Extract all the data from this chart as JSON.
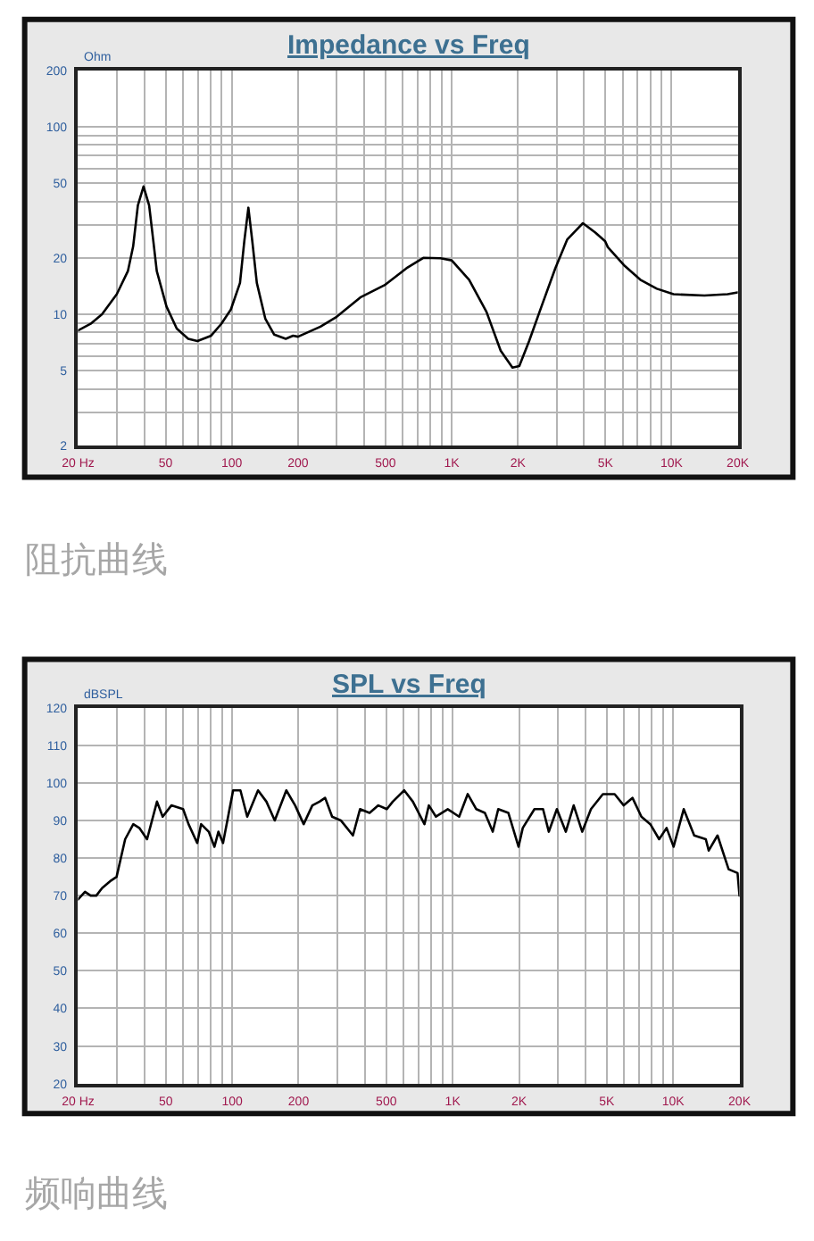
{
  "chart_data": [
    {
      "type": "line",
      "title": "Impedance vs Freq",
      "ylabel": "Ohm",
      "color": "#000000",
      "log": "xy",
      "grid": true,
      "xlim": [
        20,
        20000
      ],
      "ylim": [
        2,
        200
      ],
      "xticks": [
        {
          "value": 20,
          "label": "20 Hz"
        },
        {
          "value": 30,
          "label": null
        },
        {
          "value": 40,
          "label": null
        },
        50,
        {
          "value": 60,
          "label": null
        },
        {
          "value": 70,
          "label": null
        },
        {
          "value": 80,
          "label": null
        },
        {
          "value": 90,
          "label": null
        },
        100,
        200,
        {
          "value": 300,
          "label": null
        },
        {
          "value": 400,
          "label": null
        },
        500,
        {
          "value": 600,
          "label": null
        },
        {
          "value": 700,
          "label": null
        },
        {
          "value": 800,
          "label": null
        },
        {
          "value": 900,
          "label": null
        },
        {
          "value": 1000,
          "label": "1K"
        },
        {
          "value": 2000,
          "label": "2K"
        },
        {
          "value": 3000,
          "label": null
        },
        {
          "value": 4000,
          "label": null
        },
        {
          "value": 5000,
          "label": "5K"
        },
        {
          "value": 6000,
          "label": null
        },
        {
          "value": 7000,
          "label": null
        },
        {
          "value": 8000,
          "label": null
        },
        {
          "value": 9000,
          "label": null
        },
        {
          "value": 10000,
          "label": "10K"
        },
        {
          "value": 20000,
          "label": "20K"
        }
      ],
      "yticks": [
        2,
        {
          "value": 3,
          "label": null
        },
        {
          "value": 4,
          "label": null
        },
        5,
        {
          "value": 6,
          "label": null
        },
        {
          "value": 7,
          "label": null
        },
        {
          "value": 8,
          "label": null
        },
        {
          "value": 9,
          "label": null
        },
        10,
        20,
        {
          "value": 30,
          "label": null
        },
        {
          "value": 40,
          "label": null
        },
        50,
        {
          "value": 60,
          "label": null
        },
        {
          "value": 70,
          "label": null
        },
        {
          "value": 80,
          "label": null
        },
        {
          "value": 90,
          "label": null
        },
        100,
        200
      ],
      "x": [
        20,
        22.8,
        25.7,
        30,
        33.7,
        35.6,
        37.4,
        39.7,
        42.1,
        44,
        45.6,
        50.5,
        56.2,
        63.4,
        69.8,
        80.6,
        89.6,
        99,
        109,
        114,
        119,
        124,
        130,
        142,
        156,
        176,
        190,
        200,
        253,
        300,
        384,
        495,
        623,
        743,
        890,
        1000,
        1200,
        1440,
        1670,
        1890,
        2030,
        2250,
        2560,
        2960,
        3350,
        3950,
        4500,
        4990,
        5130,
        6070,
        7210,
        8570,
        10200,
        14100,
        18000,
        20000
      ],
      "values": [
        8.2,
        8.9,
        10,
        12.8,
        17,
        23,
        38,
        48,
        38,
        24.5,
        17,
        11,
        8.4,
        7.4,
        7.2,
        7.7,
        8.9,
        10.6,
        14.7,
        24.5,
        37,
        24.5,
        14.7,
        9.5,
        7.8,
        7.4,
        7.7,
        7.6,
        8.6,
        9.7,
        12.3,
        14.3,
        17.6,
        20,
        19.9,
        19.4,
        15.3,
        10.3,
        6.4,
        5.2,
        5.3,
        7.2,
        11,
        17.6,
        25,
        30.6,
        27.3,
        24.5,
        22.8,
        18.3,
        15.3,
        13.7,
        12.8,
        12.6,
        12.8,
        13.1
      ],
      "annotations": [
        "阻抗曲线"
      ]
    },
    {
      "type": "line",
      "title": "SPL vs Freq",
      "ylabel": "dBSPL",
      "color": "#000000",
      "log": "x",
      "grid": true,
      "xlim": [
        20,
        20000
      ],
      "ylim": [
        20,
        120
      ],
      "xticks": [
        {
          "value": 20,
          "label": "20 Hz"
        },
        {
          "value": 30,
          "label": null
        },
        {
          "value": 40,
          "label": null
        },
        50,
        {
          "value": 60,
          "label": null
        },
        {
          "value": 70,
          "label": null
        },
        {
          "value": 80,
          "label": null
        },
        {
          "value": 90,
          "label": null
        },
        100,
        200,
        {
          "value": 300,
          "label": null
        },
        {
          "value": 400,
          "label": null
        },
        500,
        {
          "value": 600,
          "label": null
        },
        {
          "value": 700,
          "label": null
        },
        {
          "value": 800,
          "label": null
        },
        {
          "value": 900,
          "label": null
        },
        {
          "value": 1000,
          "label": "1K"
        },
        {
          "value": 2000,
          "label": "2K"
        },
        {
          "value": 3000,
          "label": null
        },
        {
          "value": 4000,
          "label": null
        },
        {
          "value": 5000,
          "label": "5K"
        },
        {
          "value": 6000,
          "label": null
        },
        {
          "value": 7000,
          "label": null
        },
        {
          "value": 8000,
          "label": null
        },
        {
          "value": 9000,
          "label": null
        },
        {
          "value": 10000,
          "label": "10K"
        },
        {
          "value": 20000,
          "label": "20K"
        }
      ],
      "yticks": [
        20,
        30,
        40,
        50,
        60,
        70,
        80,
        90,
        100,
        110,
        120
      ],
      "x": [
        20,
        21.5,
        22.8,
        24.2,
        25.7,
        28.2,
        29.9,
        32.7,
        35.6,
        37.9,
        41.1,
        45.6,
        48.4,
        53,
        59.9,
        63.4,
        69.4,
        72.3,
        78.3,
        83.1,
        86.6,
        90.9,
        101,
        109,
        117,
        131,
        143,
        156,
        176,
        193,
        211,
        231,
        249,
        264,
        284,
        311,
        353,
        380,
        420,
        460,
        503,
        535,
        603,
        660,
        745,
        780,
        840,
        950,
        1070,
        1170,
        1280,
        1400,
        1520,
        1610,
        1790,
        1990,
        2080,
        2350,
        2570,
        2730,
        2970,
        3260,
        3540,
        3870,
        4240,
        4800,
        5430,
        5970,
        6540,
        7180,
        7880,
        8640,
        9340,
        10050,
        11170,
        12460,
        14070,
        14500,
        15900,
        17850,
        19600,
        20000
      ],
      "values": [
        69,
        71,
        70,
        70,
        72,
        74,
        75,
        85,
        89,
        88,
        85,
        95,
        91,
        94,
        93,
        89,
        84,
        89,
        87,
        83,
        87,
        84,
        98,
        98,
        91,
        98,
        95,
        90,
        98,
        94,
        89,
        94,
        95,
        96,
        91,
        90,
        86,
        93,
        92,
        94,
        93,
        95,
        98,
        95,
        89,
        94,
        91,
        93,
        91,
        97,
        93,
        92,
        87,
        93,
        92,
        83,
        88,
        93,
        93,
        87,
        93,
        87,
        94,
        87,
        93,
        97,
        97,
        94,
        96,
        91,
        89,
        85,
        88,
        83,
        93,
        86,
        85,
        82,
        86,
        77,
        76,
        70
      ],
      "annotations": [
        "频响曲线"
      ]
    }
  ]
}
